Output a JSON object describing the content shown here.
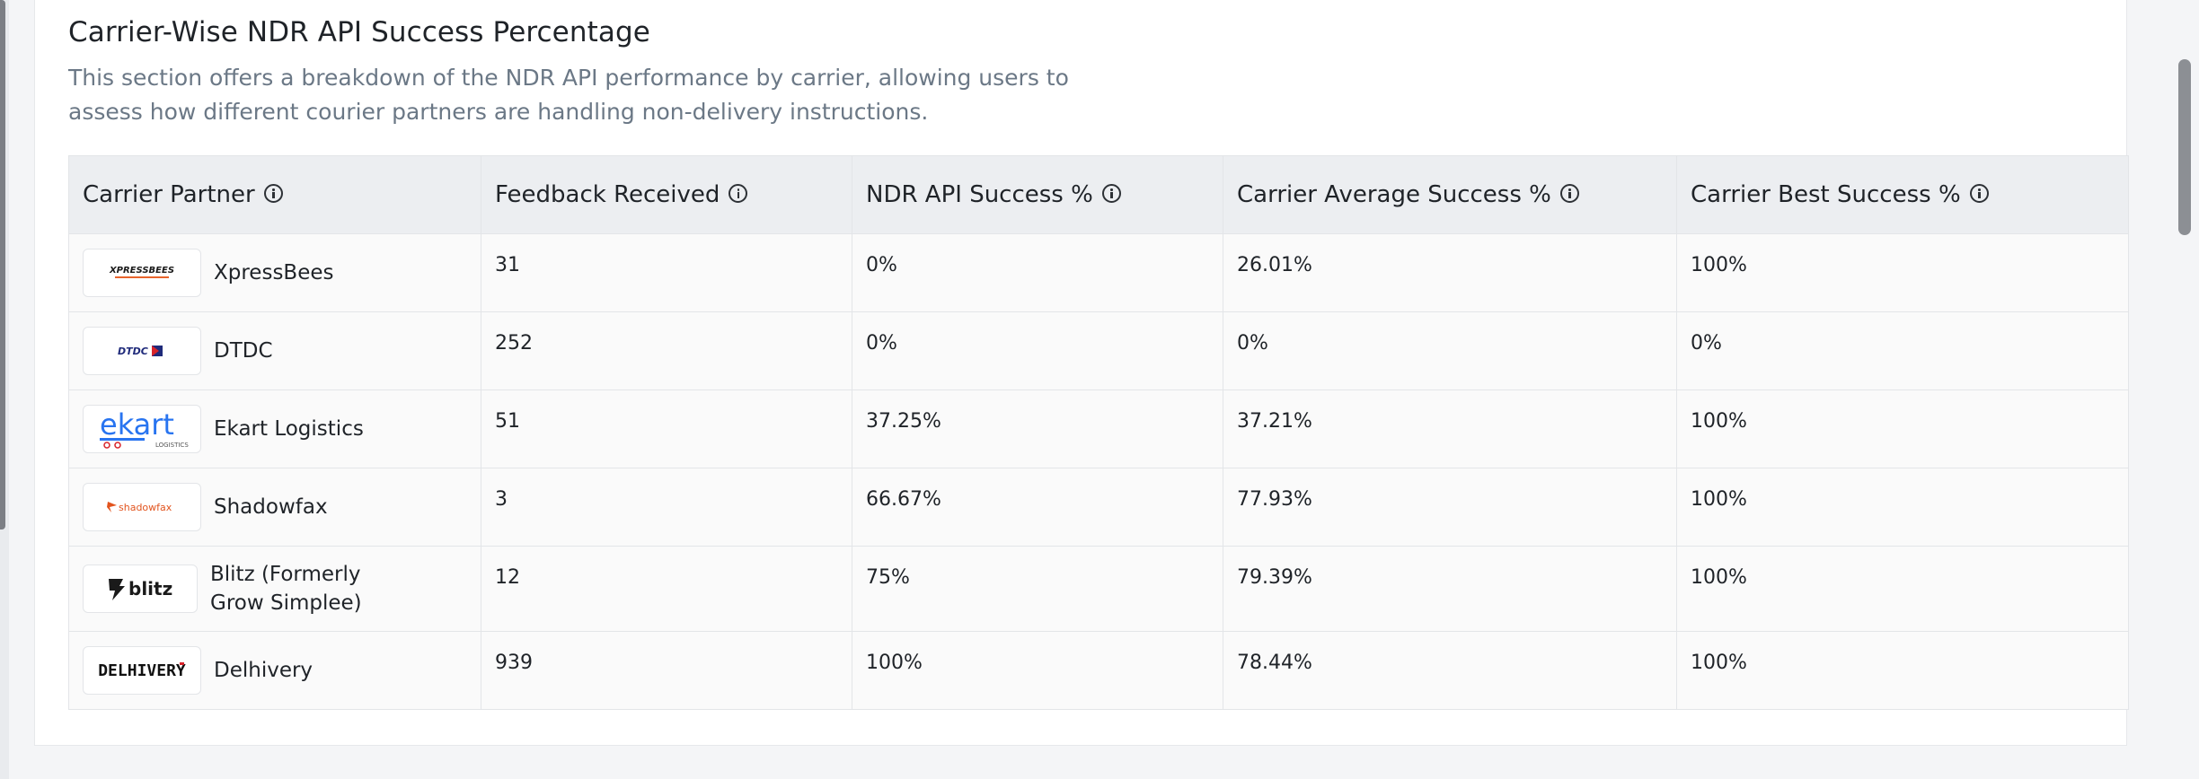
{
  "section": {
    "title": "Carrier-Wise NDR API Success Percentage",
    "description": "This section offers a breakdown of the NDR API performance by carrier, allowing users to assess how different courier partners are handling non-delivery instructions."
  },
  "table": {
    "headers": [
      "Carrier Partner",
      "Feedback Received",
      "NDR API Success %",
      "Carrier Average Success %",
      "Carrier Best Success %"
    ],
    "rows": [
      {
        "carrier": "XpressBees",
        "logo_text": "XPRESSBEES",
        "feedback": "31",
        "ndr_success": "0%",
        "avg_success": "26.01%",
        "best_success": "100%"
      },
      {
        "carrier": "DTDC",
        "logo_text": "DTDC",
        "feedback": "252",
        "ndr_success": "0%",
        "avg_success": "0%",
        "best_success": "0%"
      },
      {
        "carrier": "Ekart Logistics",
        "logo_text": "ekart",
        "logo_subtext": "LOGISTICS",
        "feedback": "51",
        "ndr_success": "37.25%",
        "avg_success": "37.21%",
        "best_success": "100%"
      },
      {
        "carrier": "Shadowfax",
        "logo_text": "shadowfax",
        "feedback": "3",
        "ndr_success": "66.67%",
        "avg_success": "77.93%",
        "best_success": "100%"
      },
      {
        "carrier": "Blitz (Formerly Grow Simplee)",
        "logo_text": "blitz",
        "feedback": "12",
        "ndr_success": "75%",
        "avg_success": "79.39%",
        "best_success": "100%"
      },
      {
        "carrier": "Delhivery",
        "logo_text": "DELHIVERY",
        "feedback": "939",
        "ndr_success": "100%",
        "avg_success": "78.44%",
        "best_success": "100%"
      }
    ]
  },
  "colors": {
    "xpressbees": "#e8642c",
    "dtdc_blue": "#1f2a7a",
    "dtdc_red": "#d8232a",
    "ekart_blue": "#2874f0",
    "shadowfax": "#e2541e",
    "text": "#1f2328",
    "muted": "#6b7886"
  },
  "icons": {
    "info": "info-icon",
    "scroll": "scrollbar"
  }
}
